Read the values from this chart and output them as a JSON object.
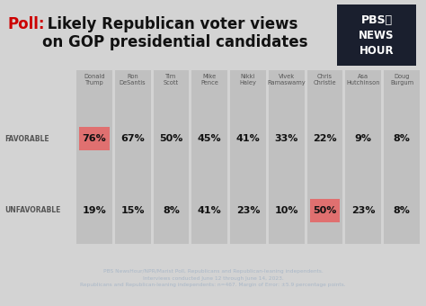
{
  "title_poll": "Poll:",
  "title_main": " Likely Republican voter views\non GOP presidential candidates",
  "candidates": [
    "Donald\nTrump",
    "Ron\nDeSantis",
    "Tim\nScott",
    "Mike\nPence",
    "Nikki\nHaley",
    "Vivek\nRamaswamy",
    "Chris\nChristie",
    "Asa\nHutchinson",
    "Doug\nBurgum"
  ],
  "favorable": [
    76,
    67,
    50,
    45,
    41,
    33,
    22,
    9,
    8
  ],
  "unfavorable": [
    19,
    15,
    8,
    41,
    23,
    10,
    50,
    23,
    8
  ],
  "favorable_highlight": [
    0
  ],
  "unfavorable_highlight": [
    6
  ],
  "highlight_color": "#e07070",
  "col_color": "#c0c0c0",
  "bg_color": "#d3d3d3",
  "footer_bg": "#1e2d45",
  "footer_text": "PBS NewsHour/NPR/Marist Poll, Republicans and Republican-leaning independents.\nInterviews conducted June 12 through June 14, 2023.\nRepublicans and Republican-leaning independents: n=467. Margin of Error: ±5.9 percentage points.",
  "footer_color": "#aab8c8",
  "title_red": "#cc0000",
  "title_black": "#111111",
  "label_color": "#555555",
  "value_color": "#111111",
  "pbs_bg": "#1a1f2e"
}
